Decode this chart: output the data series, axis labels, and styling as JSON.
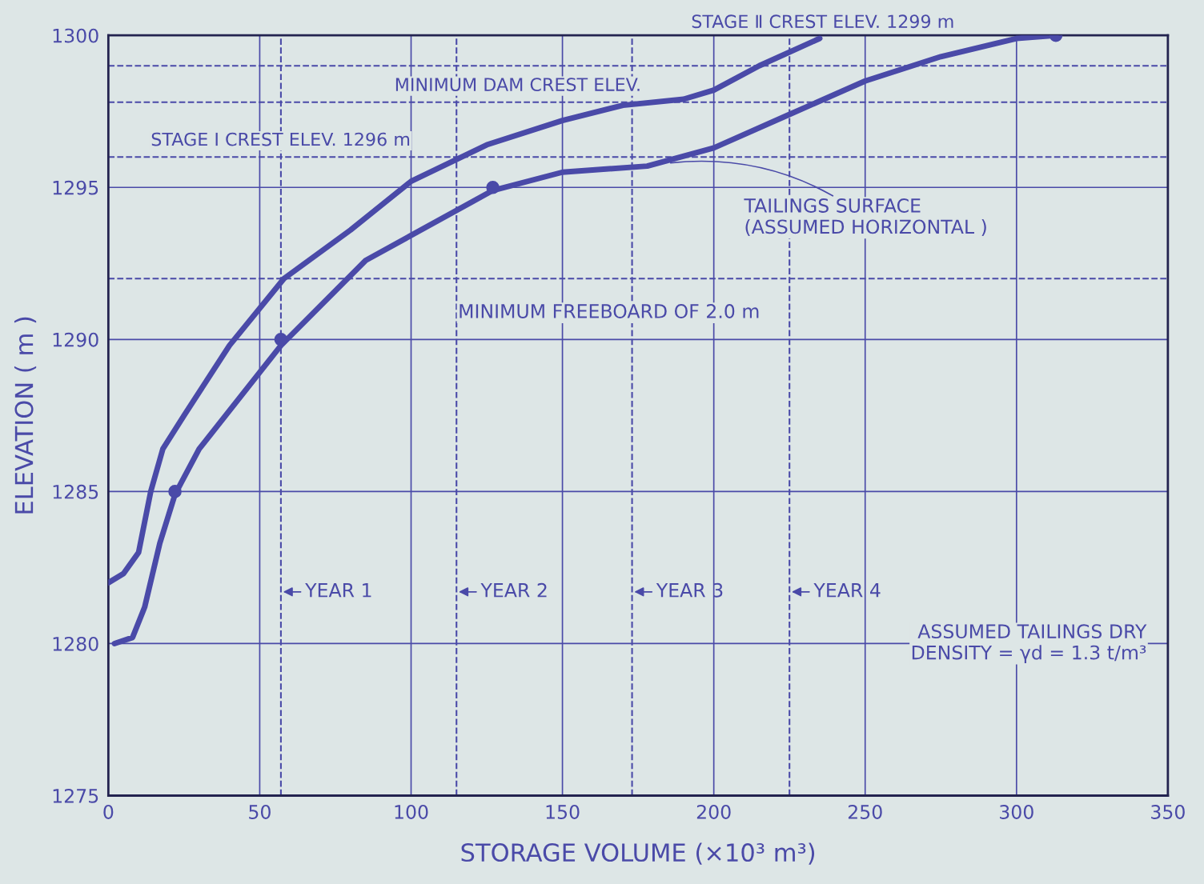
{
  "chart_data": {
    "type": "line",
    "xlabel": "STORAGE VOLUME (×10³ m³)",
    "ylabel": "ELEVATION ( m )",
    "xlim": [
      0,
      350
    ],
    "ylim": [
      1275,
      1300
    ],
    "xticks": [
      0,
      50,
      100,
      150,
      200,
      250,
      300,
      350
    ],
    "yticks": [
      1275,
      1280,
      1285,
      1290,
      1295,
      1300
    ],
    "grid": true,
    "legend": false,
    "line_style": "solid",
    "marker": "none",
    "series": [
      {
        "color": "#4a4aa8",
        "x": [
          0,
          5,
          10,
          14,
          18,
          25,
          40,
          58,
          80,
          100,
          125,
          150,
          170,
          190,
          200,
          215,
          235
        ],
        "values": [
          1282,
          1282.3,
          1283,
          1285,
          1286.4,
          1287.5,
          1289.8,
          1292,
          1293.6,
          1295.2,
          1296.4,
          1297.2,
          1297.7,
          1297.9,
          1298.2,
          1299,
          1299.9
        ]
      },
      {
        "color": "#4a4aa8",
        "x": [
          2,
          8,
          12,
          17,
          22,
          30,
          57,
          85,
          127,
          150,
          178,
          200,
          225,
          250,
          275,
          300,
          313
        ],
        "values": [
          1280,
          1280.2,
          1281.2,
          1283.3,
          1284.9,
          1286.4,
          1289.8,
          1292.6,
          1294.9,
          1295.5,
          1295.7,
          1296.3,
          1297.4,
          1298.5,
          1299.3,
          1299.9,
          1300
        ]
      },
      {
        "type": "scatter",
        "marker": "circle",
        "color": "#4a4aa8",
        "x": [
          22,
          57,
          127,
          313
        ],
        "values": [
          1285,
          1290,
          1295,
          1300
        ]
      }
    ],
    "ref_lines": [
      {
        "axis": "y",
        "value": 1299,
        "label": "STAGE Ⅱ CREST ELEV. 1299 m",
        "line_style": "dashed",
        "color": "#4a4aa8"
      },
      {
        "axis": "y",
        "value": 1297.8,
        "label": "MINIMUM DAM CREST ELEV.",
        "line_style": "dashed",
        "color": "#4a4aa8"
      },
      {
        "axis": "y",
        "value": 1296,
        "label": "STAGE I CREST ELEV. 1296 m",
        "line_style": "dashed",
        "color": "#4a4aa8"
      },
      {
        "axis": "y",
        "value": 1292,
        "line_style": "dashed",
        "color": "#4a4aa8"
      },
      {
        "axis": "x",
        "value": 57,
        "label": "YEAR 1",
        "line_style": "dashed",
        "color": "#4a4aa8"
      },
      {
        "axis": "x",
        "value": 115,
        "label": "YEAR 2",
        "line_style": "dashed",
        "color": "#4a4aa8"
      },
      {
        "axis": "x",
        "value": 173,
        "label": "YEAR 3",
        "line_style": "dashed",
        "color": "#4a4aa8"
      },
      {
        "axis": "x",
        "value": 225,
        "label": "YEAR 4",
        "line_style": "dashed",
        "color": "#4a4aa8"
      }
    ],
    "annotations": [
      {
        "text": "TAILINGS SURFACE\n(ASSUMED HORIZONTAL )",
        "x": 185,
        "y": 1295.8
      },
      "MINIMUM FREEBOARD OF 2.0 m",
      "ASSUMED TAILINGS DRY\nDENSITY = γd = 1.3 t/m³"
    ]
  }
}
